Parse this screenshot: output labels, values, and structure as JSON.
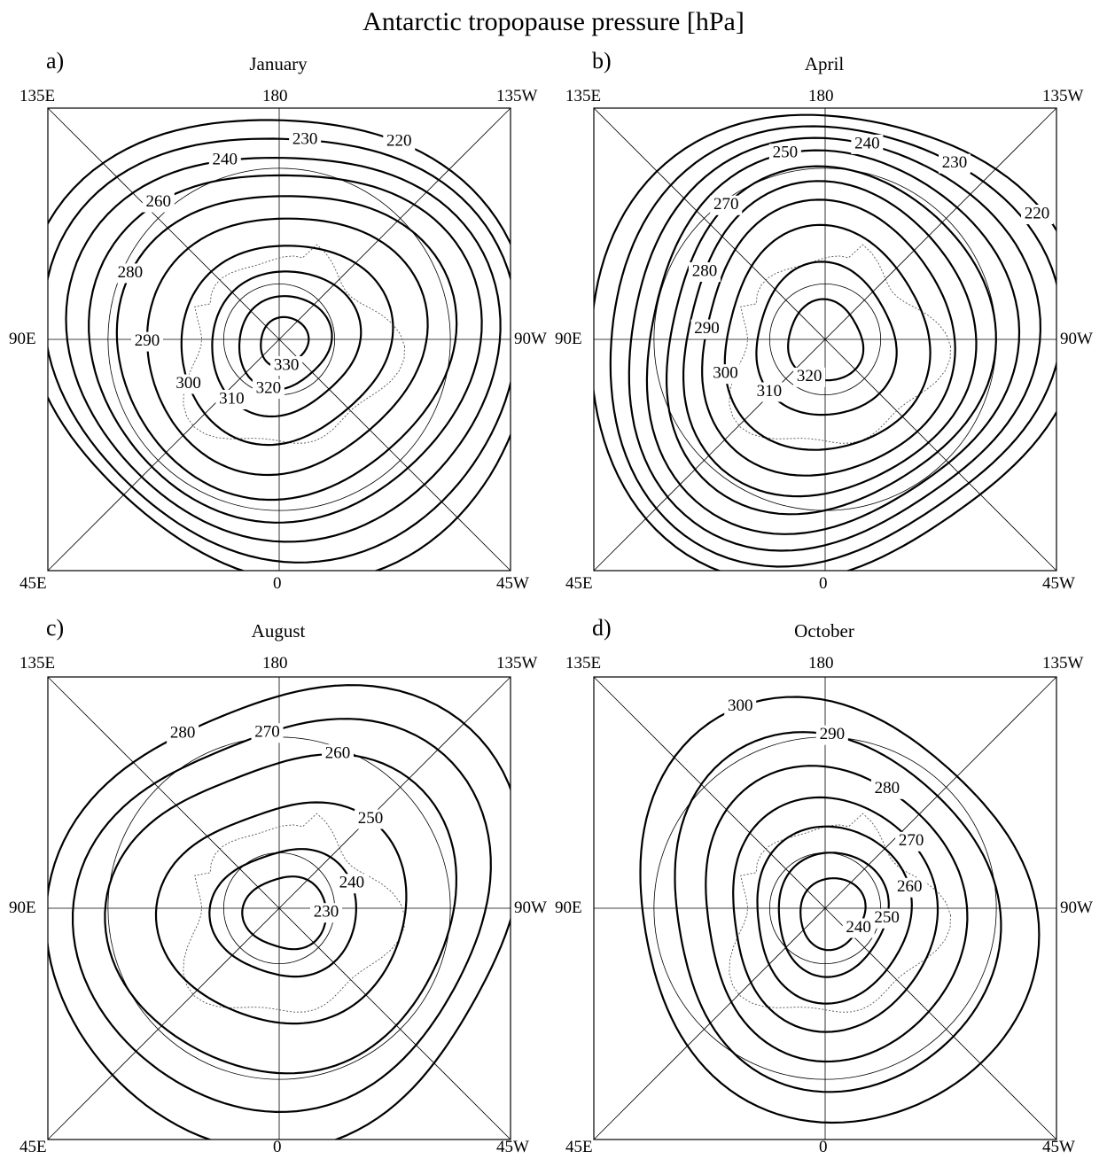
{
  "title": "Antarctic tropopause pressure [hPa]",
  "corner_labels": {
    "top_left": "135E",
    "top_center": "180",
    "top_right": "135W",
    "mid_left": "90E",
    "mid_right": "90W",
    "bottom_left": "45E",
    "bottom_center": "0",
    "bottom_right": "45W"
  },
  "map_data": {
    "projection": "south polar stereographic",
    "grid": true,
    "quantity": "tropopause pressure",
    "unit": "hPa",
    "panels": [
      {
        "letter": "a)",
        "month": "January",
        "contours": [
          {
            "value": 220,
            "label": "220",
            "r": 0.99
          },
          {
            "value": 230,
            "label": "230",
            "r": 0.92
          },
          {
            "value": 240,
            "label": "240",
            "r": 0.84
          },
          {
            "value": 260,
            "label": "260",
            "r": 0.76
          },
          {
            "value": 280,
            "label": "280",
            "r": 0.66
          },
          {
            "value": 290,
            "label": "290",
            "r": 0.55
          },
          {
            "value": 300,
            "label": "300",
            "r": 0.42
          },
          {
            "value": 310,
            "label": "310",
            "r": 0.3
          },
          {
            "value": 320,
            "label": "320",
            "r": 0.19
          },
          {
            "value": 330,
            "label": "330",
            "r": 0.1
          }
        ]
      },
      {
        "letter": "b)",
        "month": "April",
        "contours": [
          {
            "value": 220,
            "label": "220",
            "r": 0.98
          },
          {
            "value": 230,
            "label": "230",
            "r": 0.91
          },
          {
            "value": 240,
            "label": "240",
            "r": 0.84
          },
          {
            "value": 250,
            "label": "250",
            "r": 0.77
          },
          {
            "value": 270,
            "label": "270",
            "r": 0.69
          },
          {
            "value": 280,
            "label": "280",
            "r": 0.62
          },
          {
            "value": 290,
            "label": "290",
            "r": 0.54
          },
          {
            "value": 300,
            "label": "300",
            "r": 0.44
          },
          {
            "value": 310,
            "label": "310",
            "r": 0.3
          },
          {
            "value": 320,
            "label": "320",
            "r": 0.16
          }
        ]
      },
      {
        "letter": "c)",
        "month": "August",
        "contours": [
          {
            "value": 230,
            "label": "230",
            "r": 0.16
          },
          {
            "value": 240,
            "label": "240",
            "r": 0.28
          },
          {
            "value": 250,
            "label": "250",
            "r": 0.48
          },
          {
            "value": 260,
            "label": "260",
            "r": 0.68
          },
          {
            "value": 270,
            "label": "270",
            "r": 0.82
          },
          {
            "value": 280,
            "label": "280",
            "r": 0.95
          }
        ]
      },
      {
        "letter": "d)",
        "month": "October",
        "contours": [
          {
            "value": 240,
            "label": "240",
            "r": 0.14
          },
          {
            "value": 250,
            "label": "250",
            "r": 0.24
          },
          {
            "value": 260,
            "label": "260",
            "r": 0.34
          },
          {
            "value": 270,
            "label": "270",
            "r": 0.45
          },
          {
            "value": 280,
            "label": "280",
            "r": 0.57
          },
          {
            "value": 290,
            "label": "290",
            "r": 0.7
          },
          {
            "value": 300,
            "label": "300",
            "r": 0.84
          }
        ]
      }
    ]
  }
}
